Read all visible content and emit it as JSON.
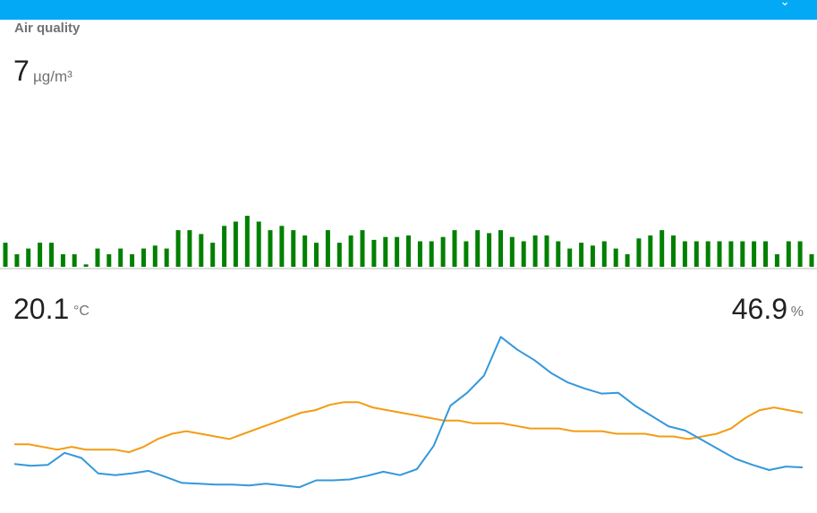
{
  "app": {
    "header_icon": "chevron-down-icon"
  },
  "air_quality": {
    "title": "Air quality",
    "value": "7",
    "unit": "µg/m³",
    "bar_color": "#008000"
  },
  "climate": {
    "temperature": "20.1",
    "temperature_unit": "°C",
    "humidity": "46.9",
    "humidity_unit": "%",
    "temperature_color": "#f39c12",
    "humidity_color": "#3498db"
  },
  "chart_data": [
    {
      "type": "bar",
      "series": [
        {
          "values": [
            5,
            2.6,
            3.8,
            5,
            5,
            2.6,
            2.6,
            0.5,
            3.8,
            2.6,
            3.8,
            2.6,
            3.8,
            4.4,
            3.8,
            7.6,
            7.6,
            6.8,
            5,
            8.5,
            9.4,
            10.6,
            9.4,
            7.6,
            8.5,
            7.6,
            6.5,
            5,
            7.6,
            5,
            6.5,
            7.6,
            5.6,
            6.2,
            6.2,
            6.5,
            5.3,
            5.3,
            6.2,
            7.6,
            5.3,
            7.6,
            7,
            7.6,
            6.2,
            5.3,
            6.5,
            6.5,
            5.3,
            3.8,
            5,
            4.4,
            5.3,
            3.8,
            2.6,
            5.9,
            6.5,
            7.6,
            6.5,
            5.3,
            5.3,
            5.3,
            5.3,
            5.3,
            5.3,
            5.3,
            5.3,
            2.6,
            5.3,
            5.3,
            2.6
          ]
        }
      ]
    },
    {
      "type": "line",
      "series": [
        {
          "color": "#f39c12",
          "values": [
            20.3,
            20.3,
            20.25,
            20.2,
            20.25,
            20.2,
            20.2,
            20.2,
            20.15,
            20.25,
            20.4,
            20.5,
            20.55,
            20.5,
            20.45,
            20.4,
            20.5,
            20.6,
            20.7,
            20.8,
            20.9,
            20.95,
            21.05,
            21.1,
            21.1,
            21,
            20.95,
            20.9,
            20.85,
            20.8,
            20.75,
            20.75,
            20.7,
            20.7,
            20.7,
            20.65,
            20.6,
            20.6,
            20.6,
            20.55,
            20.55,
            20.55,
            20.5,
            20.5,
            20.5,
            20.45,
            20.45,
            20.4,
            20.45,
            20.5,
            20.6,
            20.8,
            20.95,
            21,
            20.95,
            20.9
          ]
        },
        {
          "color": "#3498db",
          "values": [
            46.2,
            46.0,
            46.1,
            47.5,
            46.9,
            45.1,
            44.9,
            45.1,
            45.4,
            44.7,
            44.0,
            43.9,
            43.8,
            43.8,
            43.7,
            43.9,
            43.7,
            43.5,
            44.3,
            44.3,
            44.4,
            44.8,
            45.3,
            44.9,
            45.6,
            48.3,
            53.0,
            54.5,
            56.5,
            61.0,
            59.5,
            58.3,
            56.8,
            55.7,
            55.0,
            54.4,
            54.5,
            53.0,
            51.8,
            50.6,
            50.1,
            49.0,
            47.9,
            46.8,
            46.1,
            45.5,
            45.9,
            45.8
          ]
        }
      ]
    }
  ]
}
